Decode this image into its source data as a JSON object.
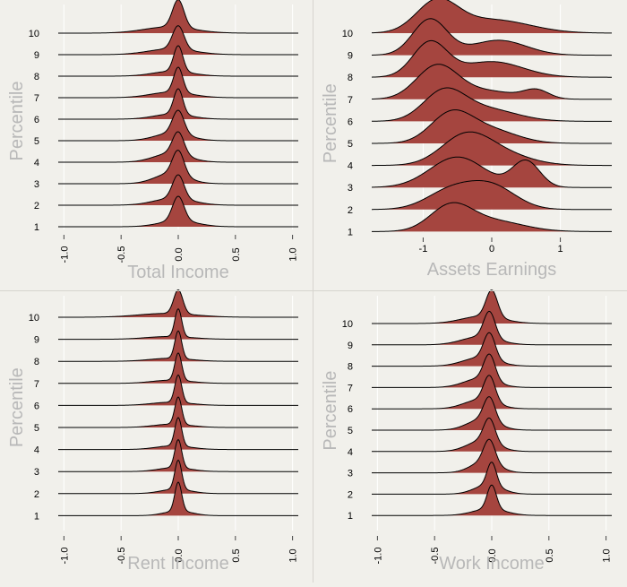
{
  "colors": {
    "background": "#f1f0eb",
    "gridline": "#ffffff",
    "fill": "#a5453f",
    "stroke": "#000000",
    "axis_label": "#b8b8b8",
    "tick_label": "#000000",
    "separator": "#d6d4ce"
  },
  "chart_data": [
    {
      "type": "ridgeline",
      "title": "",
      "xlabel": "Total Income",
      "ylabel": "Percentile",
      "categories": [
        "1",
        "2",
        "3",
        "4",
        "5",
        "6",
        "7",
        "8",
        "9",
        "10"
      ],
      "xlim": [
        -1.05,
        1.05
      ],
      "xticks": [
        -1.0,
        -0.5,
        0.0,
        0.5,
        1.0
      ],
      "xtick_labels": [
        "-1.0",
        "-0.5",
        "0.0",
        "0.5",
        "1.0"
      ],
      "grid": true,
      "series": [
        {
          "name": "1",
          "peaks": [
            {
              "mu": 0.0,
              "sd": 0.05,
              "w": 0.55
            },
            {
              "mu": 0.0,
              "sd": 0.16,
              "w": 0.45
            }
          ],
          "height": 1.0
        },
        {
          "name": "2",
          "peaks": [
            {
              "mu": 0.0,
              "sd": 0.05,
              "w": 0.5
            },
            {
              "mu": -0.04,
              "sd": 0.17,
              "w": 0.5
            }
          ],
          "height": 1.0
        },
        {
          "name": "3",
          "peaks": [
            {
              "mu": 0.0,
              "sd": 0.05,
              "w": 0.45
            },
            {
              "mu": -0.06,
              "sd": 0.14,
              "w": 0.55
            }
          ],
          "height": 1.1
        },
        {
          "name": "4",
          "peaks": [
            {
              "mu": 0.0,
              "sd": 0.05,
              "w": 0.45
            },
            {
              "mu": -0.06,
              "sd": 0.15,
              "w": 0.55
            }
          ],
          "height": 1.0
        },
        {
          "name": "5",
          "peaks": [
            {
              "mu": 0.0,
              "sd": 0.05,
              "w": 0.5
            },
            {
              "mu": -0.05,
              "sd": 0.15,
              "w": 0.5
            }
          ],
          "height": 1.0
        },
        {
          "name": "6",
          "peaks": [
            {
              "mu": 0.0,
              "sd": 0.04,
              "w": 0.55
            },
            {
              "mu": -0.05,
              "sd": 0.16,
              "w": 0.45
            }
          ],
          "height": 1.0
        },
        {
          "name": "7",
          "peaks": [
            {
              "mu": 0.0,
              "sd": 0.04,
              "w": 0.5
            },
            {
              "mu": -0.06,
              "sd": 0.18,
              "w": 0.5
            }
          ],
          "height": 1.0
        },
        {
          "name": "8",
          "peaks": [
            {
              "mu": 0.0,
              "sd": 0.04,
              "w": 0.55
            },
            {
              "mu": -0.05,
              "sd": 0.17,
              "w": 0.45
            }
          ],
          "height": 1.0
        },
        {
          "name": "9",
          "peaks": [
            {
              "mu": 0.0,
              "sd": 0.05,
              "w": 0.5
            },
            {
              "mu": -0.06,
              "sd": 0.2,
              "w": 0.5
            }
          ],
          "height": 0.95
        },
        {
          "name": "10",
          "peaks": [
            {
              "mu": 0.0,
              "sd": 0.05,
              "w": 0.5
            },
            {
              "mu": -0.08,
              "sd": 0.22,
              "w": 0.5
            }
          ],
          "height": 1.1
        }
      ]
    },
    {
      "type": "ridgeline",
      "title": "",
      "xlabel": "Assets Earnings",
      "ylabel": "Percentile",
      "categories": [
        "1",
        "2",
        "3",
        "4",
        "5",
        "6",
        "7",
        "8",
        "9",
        "10"
      ],
      "xlim": [
        -1.75,
        1.75
      ],
      "xticks": [
        -1,
        0,
        1
      ],
      "xtick_labels": [
        "-1",
        "0",
        "1"
      ],
      "grid": true,
      "series": [
        {
          "name": "1",
          "peaks": [
            {
              "mu": -0.6,
              "sd": 0.3,
              "w": 0.6
            },
            {
              "mu": 0.0,
              "sd": 0.45,
              "w": 0.4
            }
          ],
          "height": 0.95
        },
        {
          "name": "2",
          "peaks": [
            {
              "mu": -0.6,
              "sd": 0.35,
              "w": 0.45
            },
            {
              "mu": 0.0,
              "sd": 0.35,
              "w": 0.55
            }
          ],
          "height": 0.95
        },
        {
          "name": "3",
          "peaks": [
            {
              "mu": -0.5,
              "sd": 0.4,
              "w": 0.7
            },
            {
              "mu": 0.5,
              "sd": 0.2,
              "w": 0.3
            }
          ],
          "height": 1.0
        },
        {
          "name": "4",
          "peaks": [
            {
              "mu": -0.4,
              "sd": 0.35,
              "w": 0.6
            },
            {
              "mu": 0.05,
              "sd": 0.45,
              "w": 0.4
            }
          ],
          "height": 1.1
        },
        {
          "name": "5",
          "peaks": [
            {
              "mu": -0.6,
              "sd": 0.3,
              "w": 0.6
            },
            {
              "mu": -0.05,
              "sd": 0.4,
              "w": 0.4
            }
          ],
          "height": 1.1
        },
        {
          "name": "6",
          "peaks": [
            {
              "mu": -0.7,
              "sd": 0.3,
              "w": 0.6
            },
            {
              "mu": -0.1,
              "sd": 0.45,
              "w": 0.4
            }
          ],
          "height": 1.1
        },
        {
          "name": "7",
          "peaks": [
            {
              "mu": -0.8,
              "sd": 0.3,
              "w": 0.65
            },
            {
              "mu": -0.1,
              "sd": 0.45,
              "w": 0.25
            },
            {
              "mu": 0.65,
              "sd": 0.18,
              "w": 0.1
            }
          ],
          "height": 1.15
        },
        {
          "name": "8",
          "peaks": [
            {
              "mu": -0.9,
              "sd": 0.25,
              "w": 0.55
            },
            {
              "mu": 0.0,
              "sd": 0.45,
              "w": 0.45
            }
          ],
          "height": 1.2
        },
        {
          "name": "9",
          "peaks": [
            {
              "mu": -0.9,
              "sd": 0.25,
              "w": 0.6
            },
            {
              "mu": 0.1,
              "sd": 0.4,
              "w": 0.4
            }
          ],
          "height": 1.2
        },
        {
          "name": "10",
          "peaks": [
            {
              "mu": -0.8,
              "sd": 0.3,
              "w": 0.55
            },
            {
              "mu": 0.0,
              "sd": 0.55,
              "w": 0.45
            }
          ],
          "height": 1.15
        }
      ]
    },
    {
      "type": "ridgeline",
      "title": "",
      "xlabel": "Rent Income",
      "ylabel": "Percentile",
      "categories": [
        "1",
        "2",
        "3",
        "4",
        "5",
        "6",
        "7",
        "8",
        "9",
        "10"
      ],
      "xlim": [
        -1.05,
        1.05
      ],
      "xticks": [
        -1.0,
        -0.5,
        0.0,
        0.5,
        1.0
      ],
      "xtick_labels": [
        "-1.0",
        "-0.5",
        "0.0",
        "0.5",
        "1.0"
      ],
      "grid": true,
      "series": [
        {
          "name": "1",
          "peaks": [
            {
              "mu": 0.0,
              "sd": 0.03,
              "w": 0.6
            },
            {
              "mu": 0.0,
              "sd": 0.12,
              "w": 0.4
            }
          ],
          "height": 1.1
        },
        {
          "name": "2",
          "peaks": [
            {
              "mu": 0.0,
              "sd": 0.03,
              "w": 0.6
            },
            {
              "mu": -0.02,
              "sd": 0.13,
              "w": 0.4
            }
          ],
          "height": 1.1
        },
        {
          "name": "3",
          "peaks": [
            {
              "mu": 0.0,
              "sd": 0.03,
              "w": 0.6
            },
            {
              "mu": -0.03,
              "sd": 0.14,
              "w": 0.4
            }
          ],
          "height": 1.05
        },
        {
          "name": "4",
          "peaks": [
            {
              "mu": 0.0,
              "sd": 0.03,
              "w": 0.6
            },
            {
              "mu": -0.04,
              "sd": 0.15,
              "w": 0.4
            }
          ],
          "height": 1.05
        },
        {
          "name": "5",
          "peaks": [
            {
              "mu": 0.0,
              "sd": 0.03,
              "w": 0.6
            },
            {
              "mu": -0.05,
              "sd": 0.16,
              "w": 0.4
            }
          ],
          "height": 1.0
        },
        {
          "name": "6",
          "peaks": [
            {
              "mu": 0.0,
              "sd": 0.03,
              "w": 0.6
            },
            {
              "mu": -0.06,
              "sd": 0.17,
              "w": 0.4
            }
          ],
          "height": 1.0
        },
        {
          "name": "7",
          "peaks": [
            {
              "mu": 0.0,
              "sd": 0.03,
              "w": 0.6
            },
            {
              "mu": -0.06,
              "sd": 0.17,
              "w": 0.4
            }
          ],
          "height": 1.0
        },
        {
          "name": "8",
          "peaks": [
            {
              "mu": 0.0,
              "sd": 0.03,
              "w": 0.6
            },
            {
              "mu": -0.07,
              "sd": 0.18,
              "w": 0.4
            }
          ],
          "height": 1.0
        },
        {
          "name": "9",
          "peaks": [
            {
              "mu": 0.0,
              "sd": 0.03,
              "w": 0.6
            },
            {
              "mu": -0.08,
              "sd": 0.2,
              "w": 0.4
            }
          ],
          "height": 1.0
        },
        {
          "name": "10",
          "peaks": [
            {
              "mu": 0.0,
              "sd": 0.04,
              "w": 0.5
            },
            {
              "mu": -0.1,
              "sd": 0.25,
              "w": 0.5
            }
          ],
          "height": 0.9
        }
      ]
    },
    {
      "type": "ridgeline",
      "title": "",
      "xlabel": "Work Income",
      "ylabel": "Percentile",
      "categories": [
        "1",
        "2",
        "3",
        "4",
        "5",
        "6",
        "7",
        "8",
        "9",
        "10"
      ],
      "xlim": [
        -1.05,
        1.05
      ],
      "xticks": [
        -1.0,
        -0.5,
        0.0,
        0.5,
        1.0
      ],
      "xtick_labels": [
        "-1.0",
        "-0.5",
        "0.0",
        "0.5",
        "1.0"
      ],
      "grid": true,
      "series": [
        {
          "name": "1",
          "peaks": [
            {
              "mu": 0.0,
              "sd": 0.04,
              "w": 0.5
            },
            {
              "mu": -0.02,
              "sd": 0.14,
              "w": 0.5
            }
          ],
          "height": 1.0
        },
        {
          "name": "2",
          "peaks": [
            {
              "mu": 0.0,
              "sd": 0.04,
              "w": 0.45
            },
            {
              "mu": -0.03,
              "sd": 0.12,
              "w": 0.55
            }
          ],
          "height": 1.05
        },
        {
          "name": "3",
          "peaks": [
            {
              "mu": -0.02,
              "sd": 0.05,
              "w": 0.45
            },
            {
              "mu": -0.06,
              "sd": 0.12,
              "w": 0.55
            }
          ],
          "height": 1.1
        },
        {
          "name": "4",
          "peaks": [
            {
              "mu": -0.02,
              "sd": 0.05,
              "w": 0.45
            },
            {
              "mu": -0.08,
              "sd": 0.13,
              "w": 0.55
            }
          ],
          "height": 1.1
        },
        {
          "name": "5",
          "peaks": [
            {
              "mu": -0.02,
              "sd": 0.05,
              "w": 0.45
            },
            {
              "mu": -0.08,
              "sd": 0.13,
              "w": 0.55
            }
          ],
          "height": 1.1
        },
        {
          "name": "6",
          "peaks": [
            {
              "mu": -0.02,
              "sd": 0.05,
              "w": 0.5
            },
            {
              "mu": -0.1,
              "sd": 0.14,
              "w": 0.5
            }
          ],
          "height": 1.1
        },
        {
          "name": "7",
          "peaks": [
            {
              "mu": -0.02,
              "sd": 0.05,
              "w": 0.5
            },
            {
              "mu": -0.1,
              "sd": 0.14,
              "w": 0.5
            }
          ],
          "height": 1.1
        },
        {
          "name": "8",
          "peaks": [
            {
              "mu": -0.02,
              "sd": 0.05,
              "w": 0.5
            },
            {
              "mu": -0.1,
              "sd": 0.15,
              "w": 0.5
            }
          ],
          "height": 1.1
        },
        {
          "name": "9",
          "peaks": [
            {
              "mu": -0.02,
              "sd": 0.05,
              "w": 0.5
            },
            {
              "mu": -0.1,
              "sd": 0.16,
              "w": 0.5
            }
          ],
          "height": 1.1
        },
        {
          "name": "10",
          "peaks": [
            {
              "mu": 0.0,
              "sd": 0.05,
              "w": 0.5
            },
            {
              "mu": -0.08,
              "sd": 0.18,
              "w": 0.5
            }
          ],
          "height": 1.1
        }
      ]
    }
  ]
}
